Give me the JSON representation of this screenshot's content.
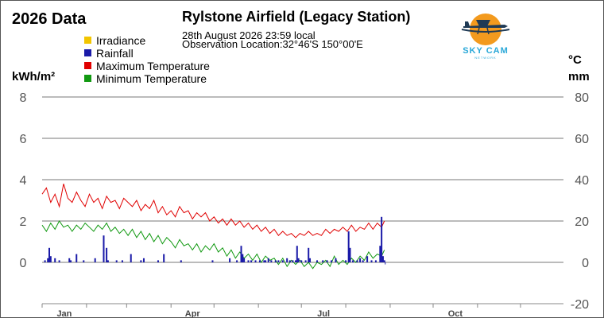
{
  "header": {
    "page_title": "2026 Data",
    "station_name": "Rylstone Airfield (Legacy Station)",
    "obs_datetime": "28th August 2026  23:59 local",
    "obs_location": "Observation Location:32°46'S 150°00'E"
  },
  "logo": {
    "text_top": "SKY CAM",
    "text_bottom": "NETWORK",
    "icon": "airplane-sun-logo"
  },
  "legend": [
    {
      "label": "Irradiance",
      "color": "#f2c500"
    },
    {
      "label": "Rainfall",
      "color": "#1a1aa8"
    },
    {
      "label": "Maximum Temperature",
      "color": "#e00000"
    },
    {
      "label": "Minimum Temperature",
      "color": "#119911"
    }
  ],
  "units": {
    "left": "kWh/m²",
    "right_temp": "°C",
    "right_rain": "mm"
  },
  "chart_data": {
    "type": "line",
    "title": "Rylstone Airfield (Legacy Station)",
    "x_axis": {
      "type": "time",
      "start": "2026-01-01",
      "end": "2026-12-31",
      "month_labels": [
        "Jan",
        "Apr",
        "Jul",
        "Oct"
      ],
      "tick_dates": [
        "2026-01-01",
        "2026-02-01",
        "2026-03-01",
        "2026-04-01",
        "2026-05-01",
        "2026-06-01",
        "2026-07-01",
        "2026-08-01",
        "2026-09-01",
        "2026-10-01",
        "2026-11-01",
        "2026-12-01"
      ],
      "grid": false
    },
    "y_left": {
      "label": "kWh/m²",
      "ylim": [
        -0.8,
        8
      ],
      "ticks": [
        0,
        2,
        4,
        6,
        8
      ],
      "grid": true
    },
    "y_right": {
      "label": "°C / mm",
      "ylim": [
        -20,
        80
      ],
      "ticks": [
        -20,
        0,
        20,
        40,
        60,
        80
      ]
    },
    "legend_placement": "top-left",
    "series": [
      {
        "name": "Maximum Temperature",
        "axis": "right",
        "color": "#e00000",
        "points": [
          [
            "2026-01-01",
            33
          ],
          [
            "2026-01-04",
            36
          ],
          [
            "2026-01-07",
            29
          ],
          [
            "2026-01-10",
            33
          ],
          [
            "2026-01-13",
            27
          ],
          [
            "2026-01-16",
            38
          ],
          [
            "2026-01-19",
            31
          ],
          [
            "2026-01-22",
            29
          ],
          [
            "2026-01-25",
            34
          ],
          [
            "2026-01-28",
            30
          ],
          [
            "2026-01-31",
            27
          ],
          [
            "2026-02-03",
            33
          ],
          [
            "2026-02-06",
            29
          ],
          [
            "2026-02-09",
            31
          ],
          [
            "2026-02-12",
            26
          ],
          [
            "2026-02-15",
            32
          ],
          [
            "2026-02-18",
            29
          ],
          [
            "2026-02-21",
            30
          ],
          [
            "2026-02-24",
            26
          ],
          [
            "2026-02-27",
            31
          ],
          [
            "2026-03-02",
            29
          ],
          [
            "2026-03-05",
            27
          ],
          [
            "2026-03-08",
            30
          ],
          [
            "2026-03-11",
            25
          ],
          [
            "2026-03-14",
            28
          ],
          [
            "2026-03-17",
            26
          ],
          [
            "2026-03-20",
            30
          ],
          [
            "2026-03-23",
            24
          ],
          [
            "2026-03-26",
            27
          ],
          [
            "2026-03-29",
            23
          ],
          [
            "2026-04-01",
            25
          ],
          [
            "2026-04-04",
            22
          ],
          [
            "2026-04-07",
            27
          ],
          [
            "2026-04-10",
            24
          ],
          [
            "2026-04-13",
            25
          ],
          [
            "2026-04-16",
            21
          ],
          [
            "2026-04-19",
            24
          ],
          [
            "2026-04-22",
            22
          ],
          [
            "2026-04-25",
            24
          ],
          [
            "2026-04-28",
            20
          ],
          [
            "2026-05-01",
            22
          ],
          [
            "2026-05-04",
            19
          ],
          [
            "2026-05-07",
            21
          ],
          [
            "2026-05-10",
            18
          ],
          [
            "2026-05-13",
            21
          ],
          [
            "2026-05-16",
            18
          ],
          [
            "2026-05-19",
            20
          ],
          [
            "2026-05-22",
            17
          ],
          [
            "2026-05-25",
            19
          ],
          [
            "2026-05-28",
            16
          ],
          [
            "2026-05-31",
            18
          ],
          [
            "2026-06-03",
            15
          ],
          [
            "2026-06-06",
            17
          ],
          [
            "2026-06-09",
            14
          ],
          [
            "2026-06-12",
            16
          ],
          [
            "2026-06-15",
            13
          ],
          [
            "2026-06-18",
            15
          ],
          [
            "2026-06-21",
            13
          ],
          [
            "2026-06-24",
            14
          ],
          [
            "2026-06-27",
            12
          ],
          [
            "2026-06-30",
            14
          ],
          [
            "2026-07-03",
            13
          ],
          [
            "2026-07-06",
            15
          ],
          [
            "2026-07-09",
            13
          ],
          [
            "2026-07-12",
            14
          ],
          [
            "2026-07-15",
            13
          ],
          [
            "2026-07-18",
            16
          ],
          [
            "2026-07-21",
            14
          ],
          [
            "2026-07-24",
            16
          ],
          [
            "2026-07-27",
            15
          ],
          [
            "2026-07-30",
            17
          ],
          [
            "2026-08-02",
            15
          ],
          [
            "2026-08-05",
            18
          ],
          [
            "2026-08-08",
            15
          ],
          [
            "2026-08-11",
            17
          ],
          [
            "2026-08-14",
            16
          ],
          [
            "2026-08-17",
            19
          ],
          [
            "2026-08-20",
            16
          ],
          [
            "2026-08-23",
            19
          ],
          [
            "2026-08-26",
            17
          ],
          [
            "2026-08-28",
            20
          ]
        ]
      },
      {
        "name": "Minimum Temperature",
        "axis": "right",
        "color": "#119911",
        "points": [
          [
            "2026-01-01",
            18
          ],
          [
            "2026-01-04",
            15
          ],
          [
            "2026-01-07",
            19
          ],
          [
            "2026-01-10",
            16
          ],
          [
            "2026-01-13",
            20
          ],
          [
            "2026-01-16",
            17
          ],
          [
            "2026-01-19",
            18
          ],
          [
            "2026-01-22",
            15
          ],
          [
            "2026-01-25",
            18
          ],
          [
            "2026-01-28",
            16
          ],
          [
            "2026-01-31",
            19
          ],
          [
            "2026-02-03",
            17
          ],
          [
            "2026-02-06",
            15
          ],
          [
            "2026-02-09",
            18
          ],
          [
            "2026-02-12",
            16
          ],
          [
            "2026-02-15",
            19
          ],
          [
            "2026-02-18",
            15
          ],
          [
            "2026-02-21",
            17
          ],
          [
            "2026-02-24",
            14
          ],
          [
            "2026-02-27",
            16
          ],
          [
            "2026-03-02",
            13
          ],
          [
            "2026-03-05",
            16
          ],
          [
            "2026-03-08",
            12
          ],
          [
            "2026-03-11",
            15
          ],
          [
            "2026-03-14",
            11
          ],
          [
            "2026-03-17",
            14
          ],
          [
            "2026-03-20",
            10
          ],
          [
            "2026-03-23",
            13
          ],
          [
            "2026-03-26",
            9
          ],
          [
            "2026-03-29",
            12
          ],
          [
            "2026-04-01",
            10
          ],
          [
            "2026-04-04",
            7
          ],
          [
            "2026-04-07",
            11
          ],
          [
            "2026-04-10",
            8
          ],
          [
            "2026-04-13",
            9
          ],
          [
            "2026-04-16",
            6
          ],
          [
            "2026-04-19",
            9
          ],
          [
            "2026-04-22",
            5
          ],
          [
            "2026-04-25",
            8
          ],
          [
            "2026-04-28",
            6
          ],
          [
            "2026-05-01",
            9
          ],
          [
            "2026-05-04",
            5
          ],
          [
            "2026-05-07",
            7
          ],
          [
            "2026-05-10",
            3
          ],
          [
            "2026-05-13",
            6
          ],
          [
            "2026-05-16",
            2
          ],
          [
            "2026-05-19",
            5
          ],
          [
            "2026-05-22",
            2
          ],
          [
            "2026-05-25",
            4
          ],
          [
            "2026-05-28",
            1
          ],
          [
            "2026-05-31",
            4
          ],
          [
            "2026-06-03",
            0
          ],
          [
            "2026-06-06",
            3
          ],
          [
            "2026-06-09",
            1
          ],
          [
            "2026-06-12",
            2
          ],
          [
            "2026-06-15",
            -1
          ],
          [
            "2026-06-18",
            2
          ],
          [
            "2026-06-21",
            -2
          ],
          [
            "2026-06-24",
            1
          ],
          [
            "2026-06-27",
            -1
          ],
          [
            "2026-06-30",
            1
          ],
          [
            "2026-07-03",
            -2
          ],
          [
            "2026-07-06",
            0
          ],
          [
            "2026-07-09",
            -3
          ],
          [
            "2026-07-12",
            0
          ],
          [
            "2026-07-15",
            -1
          ],
          [
            "2026-07-18",
            1
          ],
          [
            "2026-07-21",
            -2
          ],
          [
            "2026-07-24",
            3
          ],
          [
            "2026-07-27",
            -1
          ],
          [
            "2026-07-30",
            1
          ],
          [
            "2026-08-02",
            -1
          ],
          [
            "2026-08-05",
            2
          ],
          [
            "2026-08-08",
            0
          ],
          [
            "2026-08-11",
            3
          ],
          [
            "2026-08-14",
            1
          ],
          [
            "2026-08-17",
            5
          ],
          [
            "2026-08-20",
            2
          ],
          [
            "2026-08-23",
            4
          ],
          [
            "2026-08-26",
            3
          ],
          [
            "2026-08-28",
            6
          ]
        ]
      },
      {
        "name": "Rainfall",
        "axis": "right",
        "type": "bar",
        "color": "#1a1aa8",
        "points": [
          [
            "2026-01-03",
            1
          ],
          [
            "2026-01-05",
            2
          ],
          [
            "2026-01-06",
            7
          ],
          [
            "2026-01-07",
            3
          ],
          [
            "2026-01-10",
            2
          ],
          [
            "2026-01-13",
            1
          ],
          [
            "2026-01-20",
            2
          ],
          [
            "2026-01-21",
            1
          ],
          [
            "2026-01-25",
            4
          ],
          [
            "2026-01-30",
            1
          ],
          [
            "2026-02-07",
            2
          ],
          [
            "2026-02-13",
            13
          ],
          [
            "2026-02-15",
            7
          ],
          [
            "2026-02-16",
            1
          ],
          [
            "2026-02-22",
            1
          ],
          [
            "2026-02-26",
            1
          ],
          [
            "2026-03-04",
            4
          ],
          [
            "2026-03-11",
            1
          ],
          [
            "2026-03-13",
            2
          ],
          [
            "2026-03-23",
            1
          ],
          [
            "2026-03-27",
            4
          ],
          [
            "2026-04-08",
            1
          ],
          [
            "2026-04-30",
            1
          ],
          [
            "2026-05-12",
            2
          ],
          [
            "2026-05-17",
            1
          ],
          [
            "2026-05-20",
            8
          ],
          [
            "2026-05-21",
            4
          ],
          [
            "2026-05-22",
            2
          ],
          [
            "2026-05-25",
            1
          ],
          [
            "2026-05-27",
            1
          ],
          [
            "2026-05-30",
            1
          ],
          [
            "2026-06-02",
            1
          ],
          [
            "2026-06-05",
            1
          ],
          [
            "2026-06-06",
            1
          ],
          [
            "2026-06-08",
            2
          ],
          [
            "2026-06-10",
            1
          ],
          [
            "2026-06-13",
            1
          ],
          [
            "2026-06-15",
            1
          ],
          [
            "2026-06-18",
            1
          ],
          [
            "2026-06-21",
            2
          ],
          [
            "2026-06-23",
            1
          ],
          [
            "2026-06-25",
            1
          ],
          [
            "2026-06-27",
            1
          ],
          [
            "2026-06-28",
            8
          ],
          [
            "2026-06-29",
            2
          ],
          [
            "2026-07-01",
            1
          ],
          [
            "2026-07-04",
            1
          ],
          [
            "2026-07-06",
            7
          ],
          [
            "2026-07-07",
            2
          ],
          [
            "2026-07-12",
            1
          ],
          [
            "2026-07-16",
            1
          ],
          [
            "2026-07-19",
            1
          ],
          [
            "2026-07-22",
            1
          ],
          [
            "2026-07-25",
            2
          ],
          [
            "2026-08-01",
            1
          ],
          [
            "2026-08-03",
            15
          ],
          [
            "2026-08-04",
            7
          ],
          [
            "2026-08-06",
            1
          ],
          [
            "2026-08-09",
            1
          ],
          [
            "2026-08-11",
            2
          ],
          [
            "2026-08-13",
            1
          ],
          [
            "2026-08-16",
            3
          ],
          [
            "2026-08-19",
            1
          ],
          [
            "2026-08-22",
            1
          ],
          [
            "2026-08-25",
            8
          ],
          [
            "2026-08-26",
            22
          ],
          [
            "2026-08-27",
            3
          ],
          [
            "2026-08-28",
            1
          ]
        ]
      },
      {
        "name": "Irradiance",
        "axis": "left",
        "color": "#f2c500",
        "points": []
      }
    ]
  }
}
